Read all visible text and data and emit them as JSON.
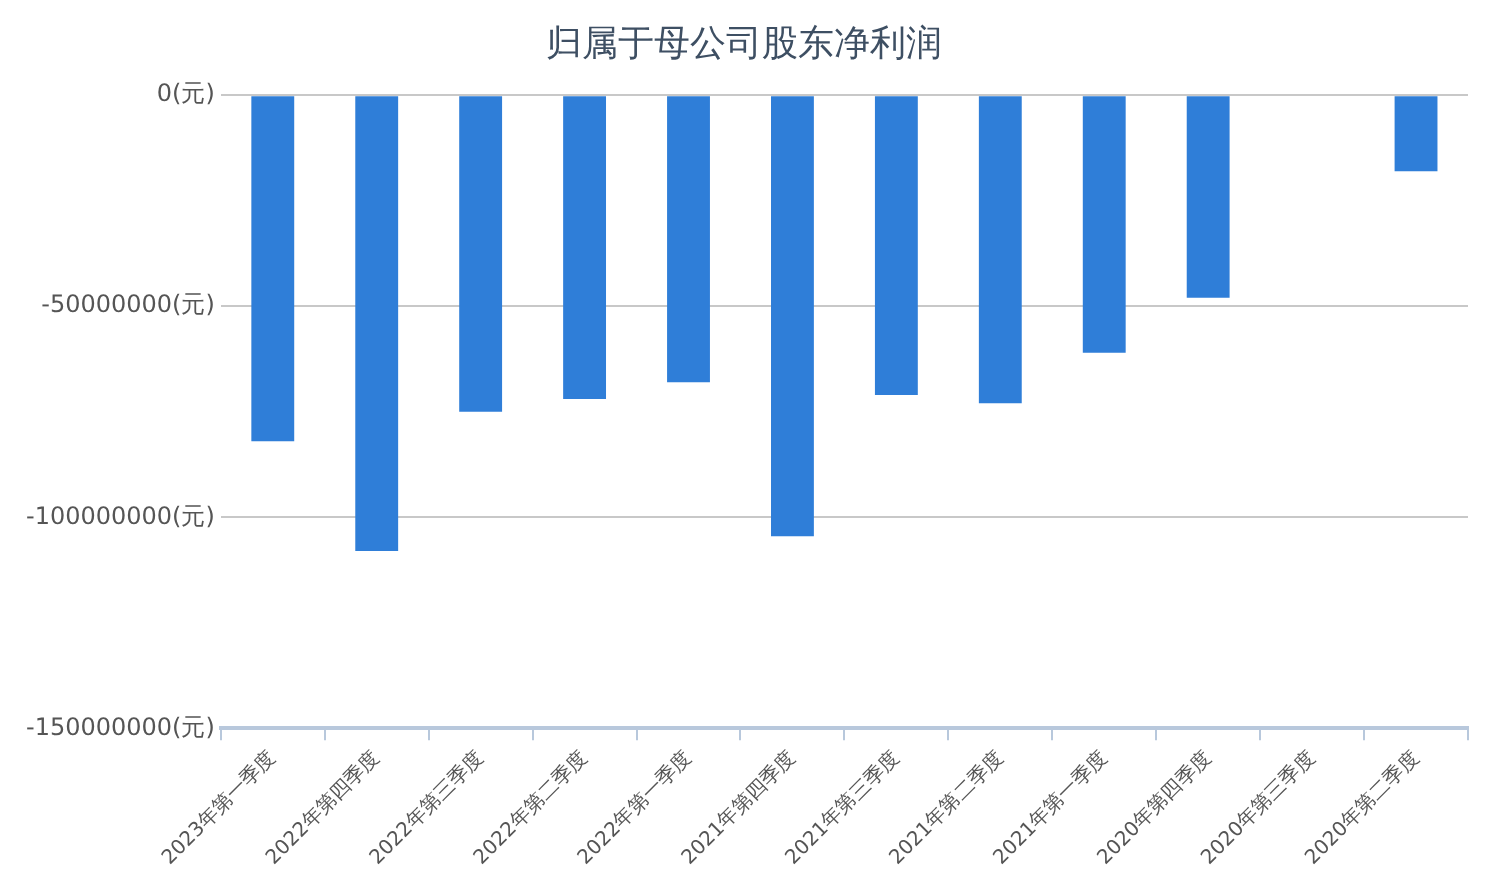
{
  "chart_data": {
    "type": "bar",
    "title": "归属于母公司股东净利润",
    "categories": [
      "2023年第一季度",
      "2022年第四季度",
      "2022年第三季度",
      "2022年第二季度",
      "2022年第一季度",
      "2021年第四季度",
      "2021年第三季度",
      "2021年第二季度",
      "2021年第一季度",
      "2020年第四季度",
      "2020年第三季度",
      "2020年第二季度"
    ],
    "values": [
      -82000000,
      -108000000,
      -75000000,
      -72000000,
      -68000000,
      -104500000,
      -71000000,
      -73000000,
      -61000000,
      -48000000,
      0,
      -18000000
    ],
    "color": "#2f7ed8",
    "ylim": [
      -150000000,
      0
    ],
    "yticks": [
      {
        "value": 0,
        "label": "0(元)"
      },
      {
        "value": -50000000,
        "label": "-50000000(元)"
      },
      {
        "value": -100000000,
        "label": "-100000000(元)"
      },
      {
        "value": -150000000,
        "label": "-150000000(元)"
      }
    ],
    "grid": "y",
    "legend": false
  }
}
